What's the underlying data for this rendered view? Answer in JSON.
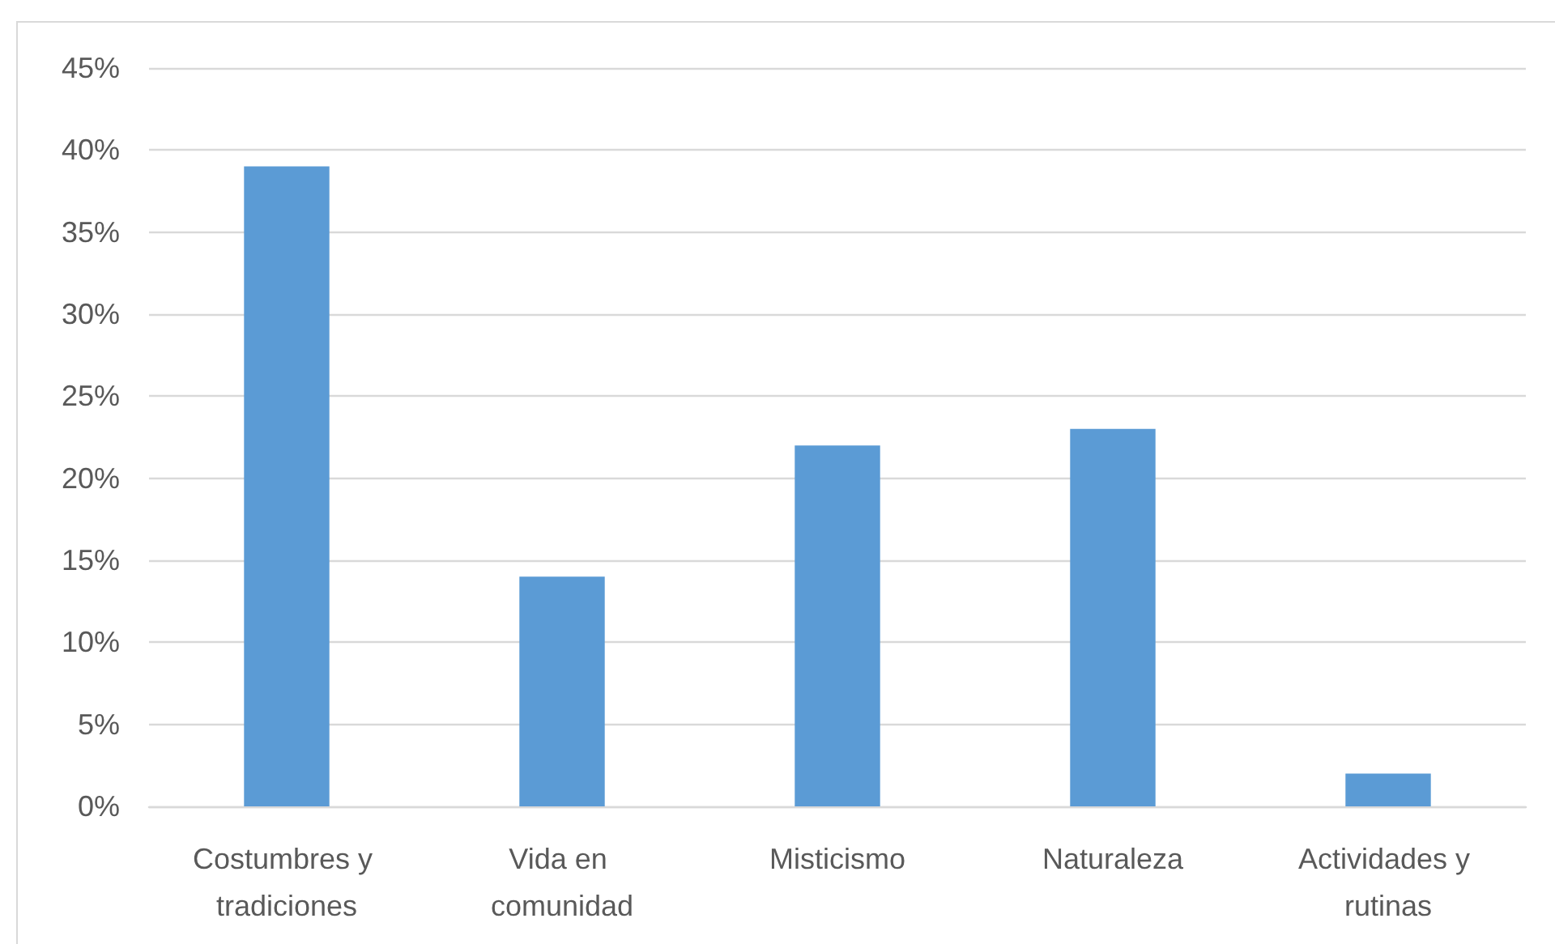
{
  "chart_data": {
    "type": "bar",
    "categories": [
      "Costumbres y tradiciones",
      "Vida en comunidad",
      "Misticismo",
      "Naturaleza",
      "Actividades y rutinas"
    ],
    "values": [
      39,
      14,
      22,
      23,
      2
    ],
    "color": "#5b9bd5",
    "ylim": [
      0,
      45
    ],
    "yticks": [
      {
        "value": 0,
        "label": "0%"
      },
      {
        "value": 5,
        "label": "5%"
      },
      {
        "value": 10,
        "label": "10%"
      },
      {
        "value": 15,
        "label": "15%"
      },
      {
        "value": 20,
        "label": "20%"
      },
      {
        "value": 25,
        "label": "25%"
      },
      {
        "value": 30,
        "label": "30%"
      },
      {
        "value": 35,
        "label": "35%"
      },
      {
        "value": 40,
        "label": "40%"
      },
      {
        "value": 45,
        "label": "45%"
      }
    ],
    "grid": "y"
  }
}
